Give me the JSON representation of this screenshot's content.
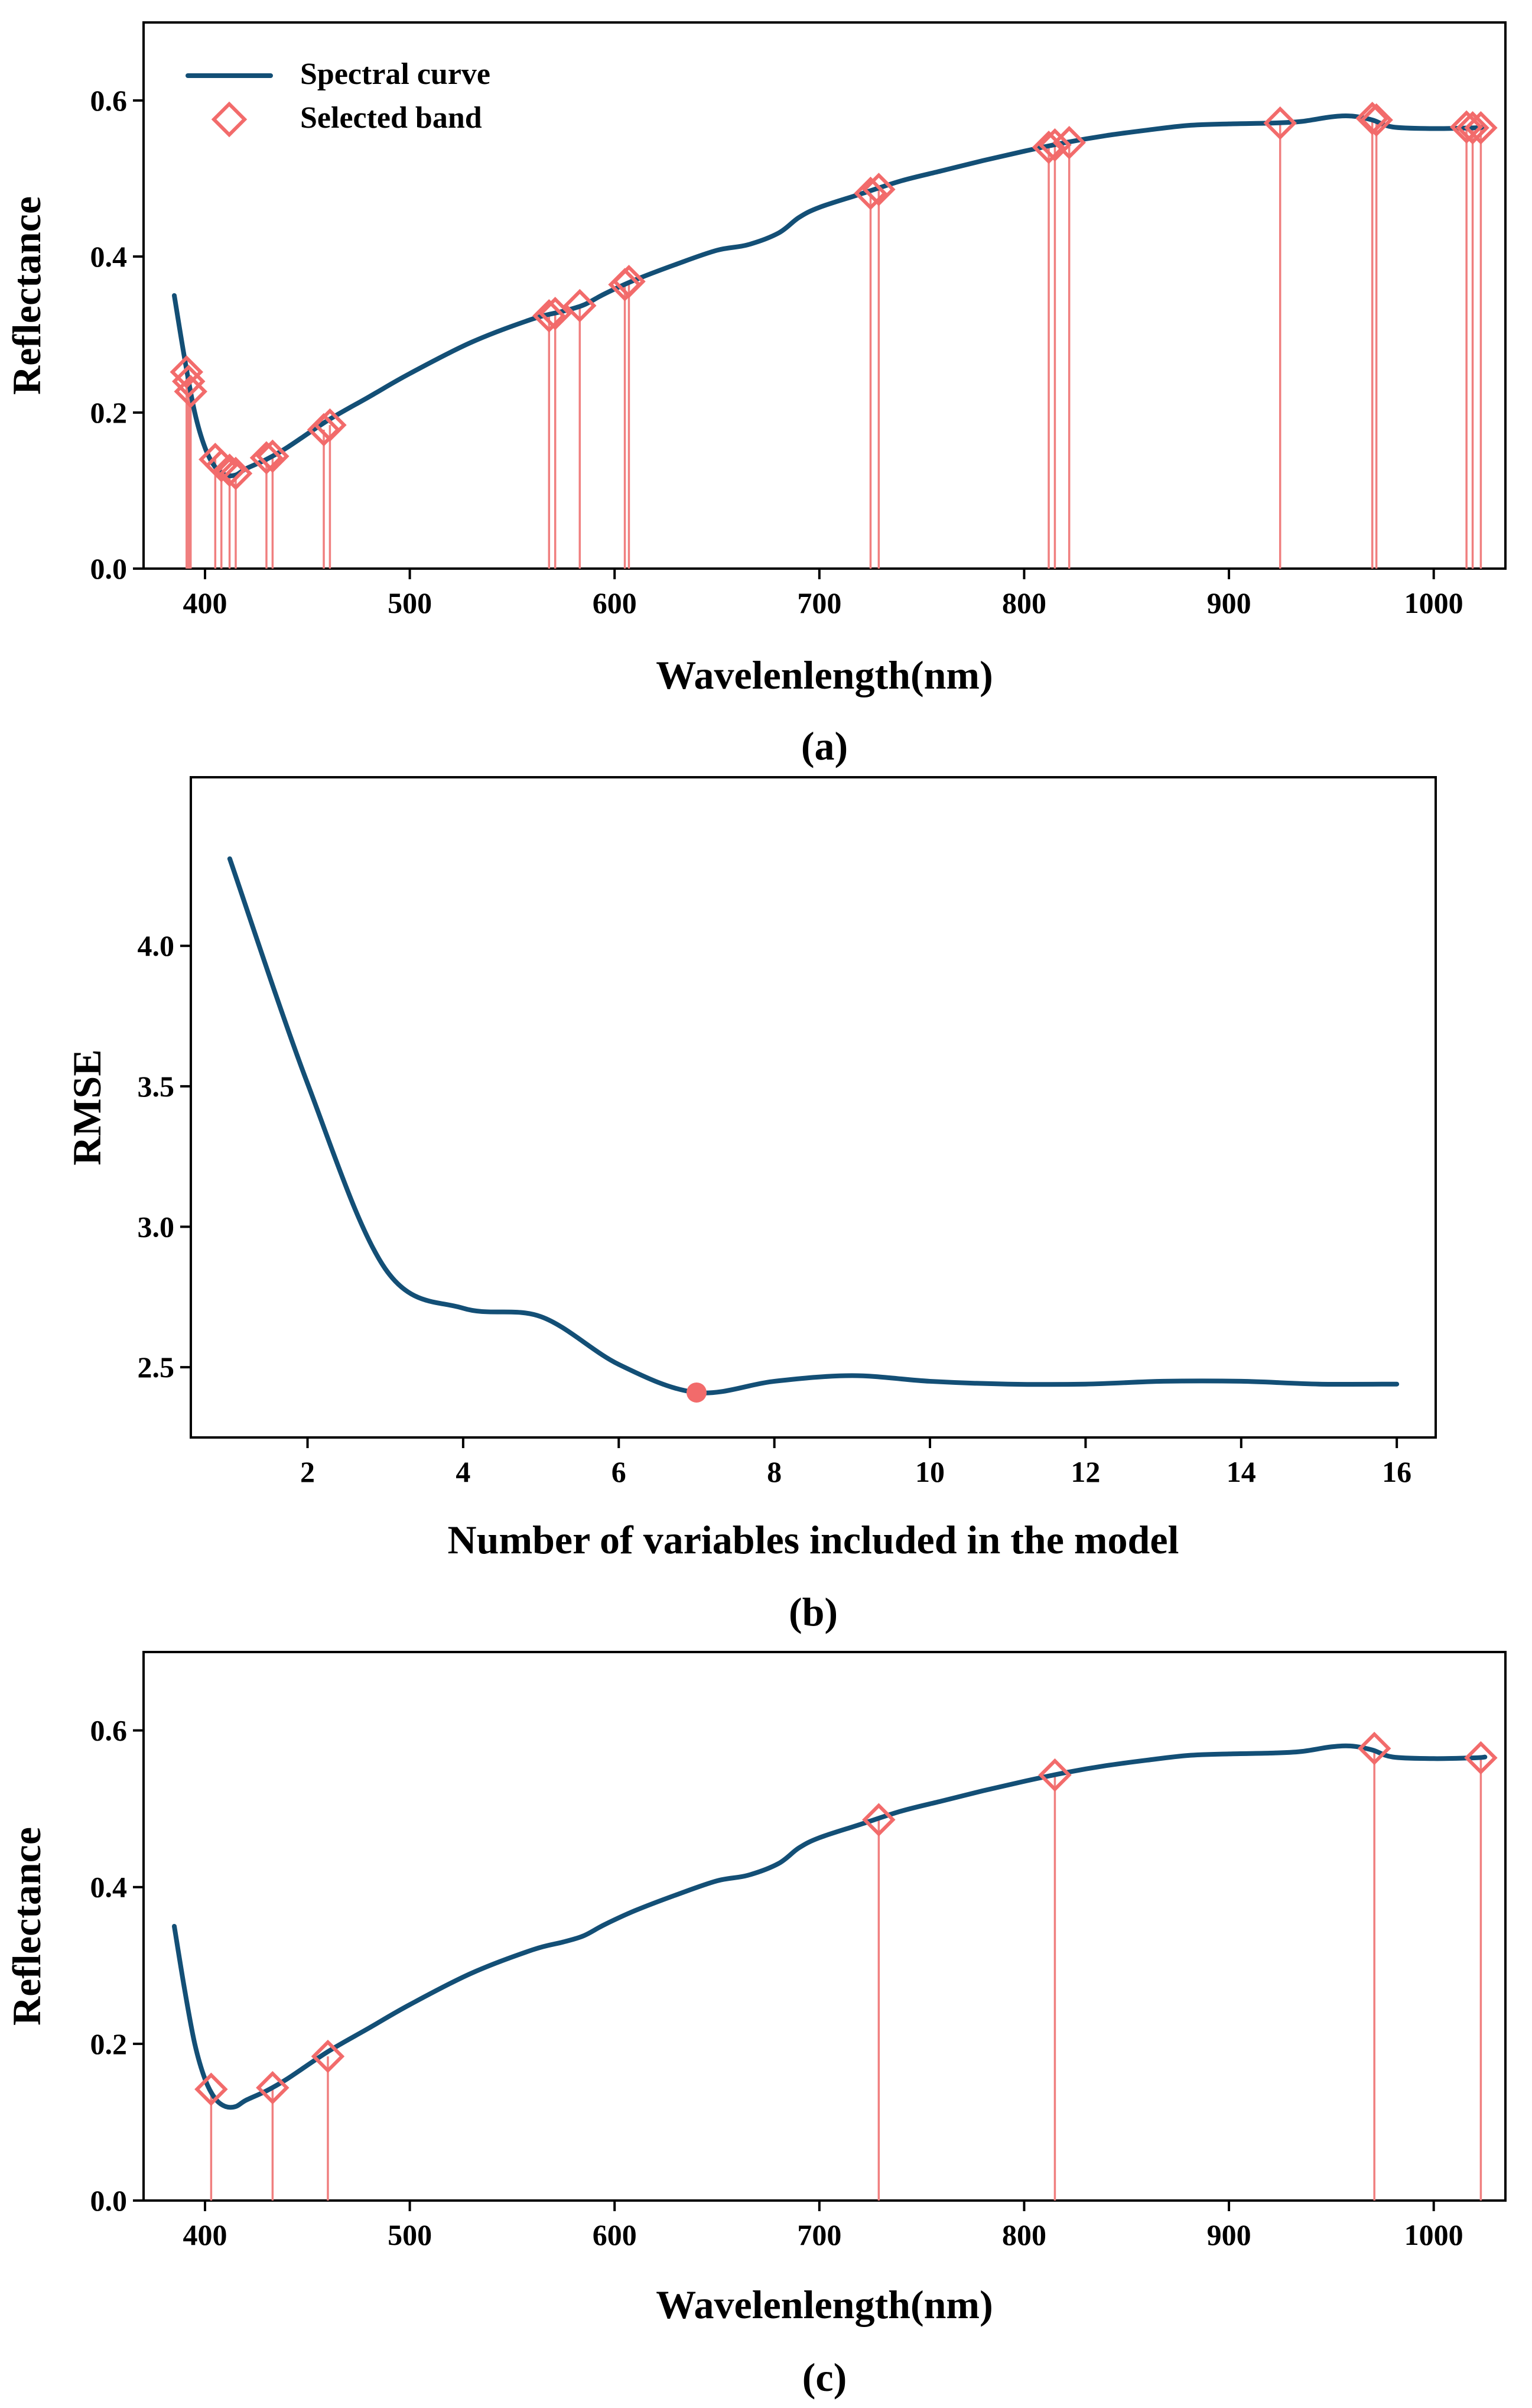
{
  "colors": {
    "curve": "#134f76",
    "marker": "#f26b6b",
    "stem": "#f07f7f"
  },
  "chart_data": [
    {
      "id": "a",
      "type": "line",
      "panel_label": "(a)",
      "xlabel": "Wavelenlength(nm)",
      "ylabel": "Reflectance",
      "xlim": [
        370,
        1035
      ],
      "ylim": [
        0,
        0.7
      ],
      "xticks": [
        400,
        500,
        600,
        700,
        800,
        900,
        1000
      ],
      "yticks": [
        0.0,
        0.2,
        0.4,
        0.6
      ],
      "ytick_labels": [
        "0.0",
        "0.2",
        "0.4",
        "0.6"
      ],
      "legend": {
        "position": "top-left",
        "curve_label": "Spectral curve",
        "marker_label": "Selected band"
      },
      "series": [
        {
          "name": "Spectral curve",
          "x": [
            385,
            390,
            395,
            400,
            405,
            410,
            415,
            420,
            430,
            440,
            460,
            480,
            500,
            530,
            560,
            575,
            585,
            595,
            610,
            630,
            650,
            665,
            680,
            690,
            700,
            720,
            740,
            760,
            780,
            800,
            820,
            840,
            860,
            880,
            900,
            920,
            935,
            950,
            960,
            970,
            980,
            1000,
            1020,
            1025
          ],
          "y": [
            0.35,
            0.27,
            0.2,
            0.155,
            0.13,
            0.12,
            0.12,
            0.128,
            0.14,
            0.155,
            0.19,
            0.22,
            0.25,
            0.29,
            0.32,
            0.33,
            0.338,
            0.352,
            0.37,
            0.39,
            0.408,
            0.415,
            0.43,
            0.45,
            0.463,
            0.48,
            0.497,
            0.51,
            0.523,
            0.535,
            0.546,
            0.555,
            0.562,
            0.568,
            0.57,
            0.571,
            0.573,
            0.579,
            0.58,
            0.575,
            0.566,
            0.564,
            0.565,
            0.566
          ]
        },
        {
          "name": "Selected band",
          "x": [
            391,
            392,
            393,
            405,
            408,
            412,
            415,
            430,
            433,
            458,
            461,
            568,
            571,
            583,
            605,
            607,
            725,
            729,
            812,
            815,
            822,
            925,
            970,
            972,
            1016,
            1019,
            1023
          ],
          "y": [
            0.252,
            0.24,
            0.227,
            0.14,
            0.132,
            0.126,
            0.122,
            0.142,
            0.144,
            0.178,
            0.184,
            0.324,
            0.327,
            0.337,
            0.364,
            0.368,
            0.481,
            0.486,
            0.54,
            0.543,
            0.546,
            0.571,
            0.577,
            0.575,
            0.566,
            0.565,
            0.565
          ]
        }
      ]
    },
    {
      "id": "b",
      "type": "line",
      "panel_label": "(b)",
      "xlabel": "Number of variables included in the model",
      "ylabel": "RMSE",
      "xlim": [
        0.5,
        16.5
      ],
      "ylim": [
        2.25,
        4.6
      ],
      "xticks": [
        2,
        4,
        6,
        8,
        10,
        12,
        14,
        16
      ],
      "yticks": [
        2.5,
        3.0,
        3.5,
        4.0
      ],
      "ytick_labels": [
        "2.5",
        "3.0",
        "3.5",
        "4.0"
      ],
      "series": [
        {
          "name": "RMSE",
          "x": [
            1,
            2,
            3,
            4,
            5,
            6,
            7,
            8,
            9,
            10,
            11,
            12,
            13,
            14,
            15,
            16
          ],
          "y": [
            4.31,
            3.51,
            2.85,
            2.71,
            2.68,
            2.51,
            2.41,
            2.45,
            2.47,
            2.45,
            2.44,
            2.44,
            2.45,
            2.45,
            2.44,
            2.44
          ]
        }
      ],
      "highlight": {
        "x": 7,
        "y": 2.41
      }
    },
    {
      "id": "c",
      "type": "line",
      "panel_label": "(c)",
      "xlabel": "Wavelenlength(nm)",
      "ylabel": "Reflectance",
      "xlim": [
        370,
        1035
      ],
      "ylim": [
        0,
        0.7
      ],
      "xticks": [
        400,
        500,
        600,
        700,
        800,
        900,
        1000
      ],
      "yticks": [
        0.0,
        0.2,
        0.4,
        0.6
      ],
      "ytick_labels": [
        "0.0",
        "0.2",
        "0.4",
        "0.6"
      ],
      "series": [
        {
          "name": "Spectral curve",
          "x": [
            385,
            390,
            395,
            400,
            405,
            410,
            415,
            420,
            430,
            440,
            460,
            480,
            500,
            530,
            560,
            575,
            585,
            595,
            610,
            630,
            650,
            665,
            680,
            690,
            700,
            720,
            740,
            760,
            780,
            800,
            820,
            840,
            860,
            880,
            900,
            920,
            935,
            950,
            960,
            970,
            980,
            1000,
            1020,
            1025
          ],
          "y": [
            0.35,
            0.27,
            0.2,
            0.155,
            0.13,
            0.12,
            0.12,
            0.128,
            0.14,
            0.155,
            0.19,
            0.22,
            0.25,
            0.29,
            0.32,
            0.33,
            0.338,
            0.352,
            0.37,
            0.39,
            0.408,
            0.415,
            0.43,
            0.45,
            0.463,
            0.48,
            0.497,
            0.51,
            0.523,
            0.535,
            0.546,
            0.555,
            0.562,
            0.568,
            0.57,
            0.571,
            0.573,
            0.579,
            0.58,
            0.575,
            0.566,
            0.564,
            0.565,
            0.566
          ]
        },
        {
          "name": "Selected band",
          "x": [
            403,
            433,
            460,
            729,
            815,
            971,
            1023
          ],
          "y": [
            0.142,
            0.144,
            0.184,
            0.486,
            0.543,
            0.577,
            0.565
          ]
        }
      ]
    }
  ]
}
